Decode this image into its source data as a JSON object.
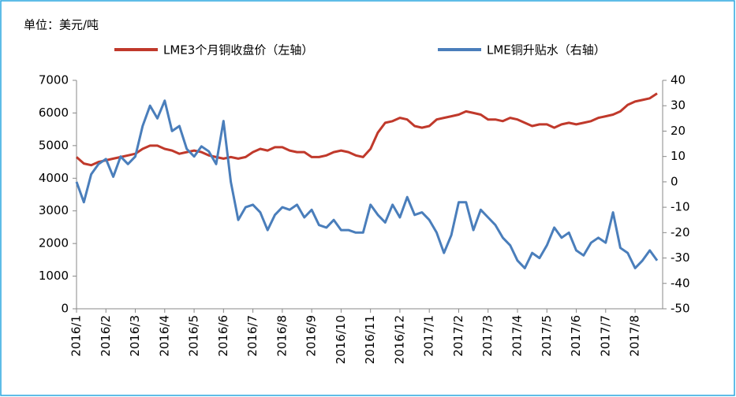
{
  "chart_data": {
    "type": "line",
    "subtitle": "单位：美元/吨",
    "categories": [
      "2016/1",
      null,
      null,
      null,
      "2016/2",
      null,
      null,
      null,
      "2016/3",
      null,
      null,
      null,
      "2016/4",
      null,
      null,
      null,
      "2016/5",
      null,
      null,
      null,
      "2016/6",
      null,
      null,
      null,
      "2016/7",
      null,
      null,
      null,
      "2016/8",
      null,
      null,
      null,
      "2016/9",
      null,
      null,
      null,
      "2016/10",
      null,
      null,
      null,
      "2016/11",
      null,
      null,
      null,
      "2016/12",
      null,
      null,
      null,
      "2017/1",
      null,
      null,
      null,
      "2017/2",
      null,
      null,
      null,
      "2017/3",
      null,
      null,
      null,
      "2017/4",
      null,
      null,
      null,
      "2017/5",
      null,
      null,
      null,
      "2017/6",
      null,
      null,
      null,
      "2017/7",
      null,
      null,
      null,
      "2017/8",
      null,
      null,
      null
    ],
    "series": [
      {
        "name": "LME3个月铜收盘价（左轴）",
        "color": "#c0392b",
        "values": [
          4650,
          4450,
          4400,
          4500,
          4550,
          4600,
          4650,
          4700,
          4750,
          4900,
          5000,
          5000,
          4900,
          4850,
          4750,
          4800,
          4850,
          4800,
          4700,
          4650,
          4600,
          4650,
          4600,
          4650,
          4800,
          4900,
          4850,
          4950,
          4950,
          4850,
          4800,
          4800,
          4650,
          4650,
          4700,
          4800,
          4850,
          4800,
          4700,
          4650,
          4900,
          5400,
          5700,
          5750,
          5850,
          5800,
          5600,
          5550,
          5600,
          5800,
          5850,
          5900,
          5950,
          6050,
          6000,
          5950,
          5800,
          5800,
          5750,
          5850,
          5800,
          5700,
          5600,
          5650,
          5650,
          5550,
          5650,
          5700,
          5650,
          5700,
          5750,
          5850,
          5900,
          5950,
          6050,
          6250,
          6350,
          6400,
          6450,
          6600
        ]
      },
      {
        "name": "LME铜升贴水（右轴）",
        "color": "#4a7ebb",
        "axis": "y2",
        "values": [
          0,
          -8,
          3,
          7,
          9,
          2,
          10,
          7,
          10,
          22,
          30,
          25,
          32,
          20,
          22,
          13,
          10,
          14,
          12,
          7,
          24,
          0,
          -15,
          -10,
          -9,
          -12,
          -19,
          -13,
          -10,
          -11,
          -9,
          -14,
          -11,
          -17,
          -18,
          -15,
          -19,
          -19,
          -20,
          -20,
          -9,
          -13,
          -16,
          -9,
          -14,
          -6,
          -13,
          -12,
          -15,
          -20,
          -28,
          -21,
          -8,
          -8,
          -19,
          -11,
          -14,
          -17,
          -22,
          -25,
          -31,
          -34,
          -28,
          -30,
          -25,
          -18,
          -22,
          -20,
          -27,
          -29,
          -24,
          -22,
          -24,
          -12,
          -26,
          -28,
          -34,
          -31,
          -27,
          -31
        ]
      }
    ],
    "ylim": [
      0,
      7000
    ],
    "yticks": [
      0,
      1000,
      2000,
      3000,
      4000,
      5000,
      6000,
      7000
    ],
    "y2lim": [
      -50,
      40
    ],
    "y2ticks": [
      -50,
      -40,
      -30,
      -20,
      -10,
      0,
      10,
      20,
      30,
      40
    ]
  }
}
